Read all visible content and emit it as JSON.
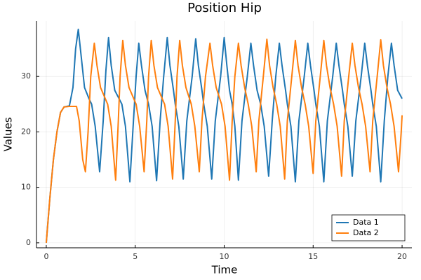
{
  "chart_data": {
    "type": "line",
    "title": "Position Hip",
    "x_label": "Time",
    "y_label": "Values",
    "xlim": [
      -0.55,
      20.55
    ],
    "ylim": [
      -0.9,
      40
    ],
    "xticks": [
      0,
      5,
      10,
      15,
      20
    ],
    "yticks": [
      0,
      10,
      20,
      30
    ],
    "grid": true,
    "legend": "bottom-right",
    "series": [
      {
        "name": "Data 1",
        "color": "#1f77b4",
        "x": [
          0,
          0.2,
          0.4,
          0.6,
          0.8,
          1.0,
          1.3,
          1.5,
          1.65,
          1.8,
          1.95,
          2.15,
          2.4,
          2.55,
          2.75,
          3.0,
          3.2,
          3.35,
          3.5,
          3.65,
          3.85,
          4.25,
          4.45,
          4.7,
          4.9,
          5.05,
          5.2,
          5.35,
          5.55,
          5.75,
          5.95,
          6.2,
          6.4,
          6.6,
          6.8,
          6.95,
          7.15,
          7.25,
          7.45,
          7.7,
          7.9,
          8.2,
          8.4,
          8.55,
          8.75,
          8.85,
          9.05,
          9.3,
          9.5,
          9.8,
          10,
          10.15,
          10.3,
          10.45,
          10.6,
          10.8,
          11.0,
          11.3,
          11.5,
          11.65,
          11.85,
          12.05,
          12.25,
          12.5,
          12.7,
          12.9,
          13.1,
          13.25,
          13.45,
          13.55,
          13.75,
          14,
          14.2,
          14.5,
          14.7,
          14.85,
          15.05,
          15.15,
          15.35,
          15.6,
          15.8,
          16.1,
          16.3,
          16.45,
          16.65,
          16.75,
          16.95,
          17.2,
          17.4,
          17.7,
          17.9,
          18.05,
          18.25,
          18.35,
          18.55,
          18.8,
          19.0,
          19.2,
          19.4,
          19.55,
          19.75,
          20
        ],
        "values": [
          0,
          8,
          15,
          20,
          23.5,
          24.5,
          24.7,
          28,
          35,
          38.5,
          34,
          28,
          26,
          25,
          21,
          12.8,
          22,
          31,
          37,
          32,
          27.5,
          25,
          21,
          11,
          22,
          30,
          36,
          32,
          27.5,
          25,
          21,
          11.2,
          22,
          30,
          37,
          32,
          27.5,
          25,
          21,
          11.5,
          22,
          30,
          36.8,
          32,
          27.5,
          25,
          21,
          11.5,
          22,
          30,
          37,
          32,
          27.5,
          25,
          21,
          11.3,
          22,
          30,
          36,
          32,
          27.5,
          25,
          21,
          12,
          22,
          30,
          36,
          32,
          27.5,
          25,
          21,
          11,
          22,
          30,
          36,
          32,
          27.5,
          25,
          21,
          11,
          22,
          30,
          36,
          32,
          27.5,
          25,
          21,
          12,
          22,
          30,
          36,
          32,
          27.5,
          25,
          21,
          11,
          22,
          30,
          36,
          32,
          27.5,
          26
        ]
      },
      {
        "name": "Data 2",
        "color": "#ff7f0e",
        "x": [
          0,
          0.2,
          0.4,
          0.6,
          0.8,
          1.0,
          1.3,
          1.7,
          1.85,
          2.05,
          2.2,
          2.35,
          2.5,
          2.7,
          2.85,
          3.05,
          3.45,
          3.65,
          3.9,
          4.05,
          4.15,
          4.3,
          4.45,
          4.65,
          5.05,
          5.25,
          5.5,
          5.65,
          5.75,
          5.9,
          6.05,
          6.25,
          6.65,
          6.85,
          7.1,
          7.25,
          7.35,
          7.5,
          7.65,
          7.85,
          8.15,
          8.35,
          8.6,
          8.75,
          8.95,
          9.2,
          9.35,
          9.55,
          9.85,
          10.05,
          10.3,
          10.45,
          10.6,
          10.8,
          10.95,
          11.15,
          11.35,
          11.55,
          11.8,
          11.95,
          12.2,
          12.4,
          12.55,
          12.75,
          12.95,
          13.15,
          13.4,
          13.55,
          13.8,
          14,
          14.15,
          14.35,
          14.55,
          14.75,
          15,
          15.15,
          15.4,
          15.6,
          15.75,
          15.95,
          16.15,
          16.35,
          16.6,
          16.75,
          17,
          17.2,
          17.35,
          17.55,
          17.75,
          17.95,
          18.2,
          18.35,
          18.6,
          18.8,
          18.95,
          19.15,
          19.35,
          19.55,
          19.8,
          19.95,
          20
        ],
        "values": [
          0,
          8,
          15,
          20,
          23.5,
          24.5,
          24.6,
          24.6,
          22,
          15,
          12.8,
          20,
          30,
          36,
          32,
          28,
          25,
          21,
          11.3,
          22,
          30,
          36.5,
          32,
          28,
          25,
          21,
          12.8,
          22,
          30,
          36.5,
          32,
          28,
          25,
          21,
          11.5,
          22,
          30,
          36.5,
          32,
          28,
          25,
          21,
          12.8,
          22,
          30,
          36,
          32,
          28,
          25,
          21,
          11.3,
          22,
          30,
          36,
          32,
          28,
          25,
          21,
          12.8,
          22,
          30,
          36.7,
          32,
          28,
          25,
          21,
          11.5,
          22,
          30,
          36.5,
          32,
          28,
          25,
          21,
          12.5,
          22,
          30,
          36.5,
          32,
          28,
          25,
          21,
          12,
          22,
          30,
          36,
          32,
          28,
          25,
          21,
          12.8,
          22,
          30,
          36.6,
          32,
          28,
          25,
          21,
          12.8,
          20,
          23
        ]
      }
    ]
  }
}
